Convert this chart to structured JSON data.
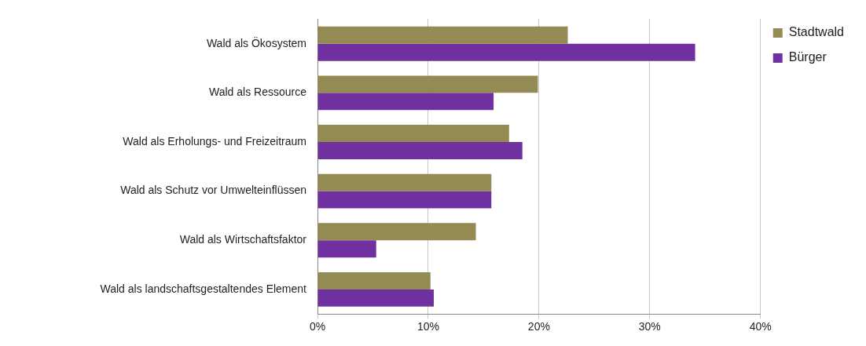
{
  "chart_data": {
    "type": "bar",
    "orientation": "horizontal",
    "categories": [
      "Wald als Ökosystem",
      "Wald als Ressource",
      "Wald als Erholungs- und Freizeitraum",
      "Wald als Schutz vor Umwelteinflüssen",
      "Wald als Wirtschaftsfaktor",
      "Wald als landschaftsgestaltendes Element"
    ],
    "series": [
      {
        "name": "Stadtwald",
        "color": "#948a54",
        "values": [
          22.6,
          19.9,
          17.3,
          15.7,
          14.3,
          10.2
        ]
      },
      {
        "name": "Bürger",
        "color": "#7030a0",
        "values": [
          34.1,
          15.9,
          18.5,
          15.7,
          5.3,
          10.5
        ]
      }
    ],
    "xlim": [
      0,
      40
    ],
    "xticks": [
      {
        "value": 0,
        "label": "0%"
      },
      {
        "value": 10,
        "label": "10%"
      },
      {
        "value": 20,
        "label": "20%"
      },
      {
        "value": 30,
        "label": "30%"
      },
      {
        "value": 40,
        "label": "40%"
      }
    ],
    "grid": "x",
    "legend": "top right"
  }
}
